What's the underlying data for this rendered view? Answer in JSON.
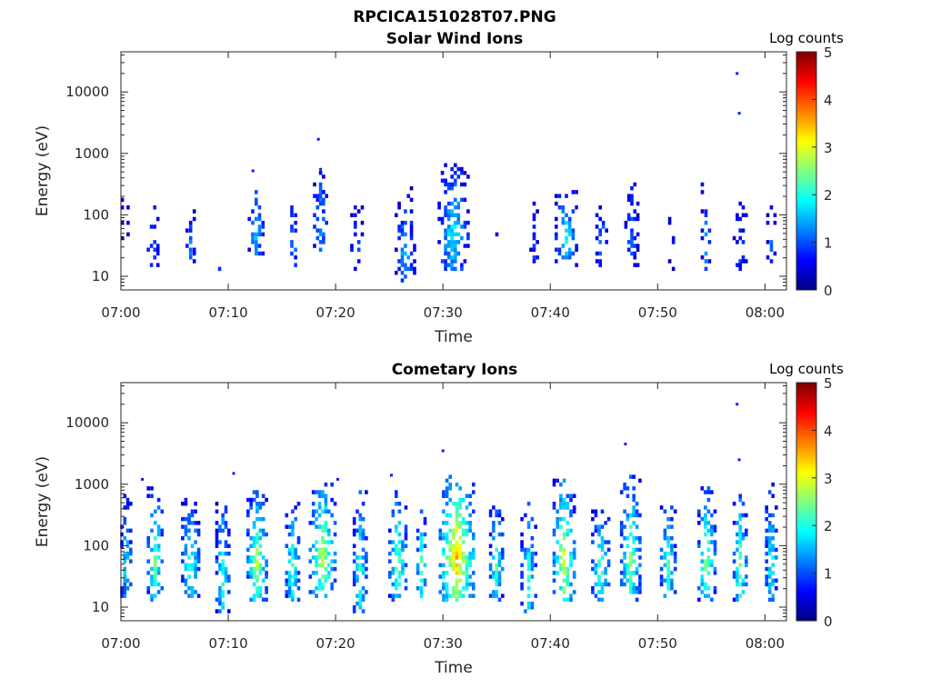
{
  "figure_title": "RPCICA151028T07.PNG",
  "colormap": [
    "#00007f",
    "#0000ff",
    "#007fff",
    "#00ffff",
    "#7fff7f",
    "#ffff00",
    "#ff7f00",
    "#ff0000",
    "#7f0000"
  ],
  "chart_data": [
    {
      "type": "heatmap",
      "title": "Solar Wind Ions",
      "xlabel": "Time",
      "ylabel": "Energy (eV)",
      "x_tick_labels": [
        "07:00",
        "07:10",
        "07:20",
        "07:30",
        "07:40",
        "07:50",
        "08:00"
      ],
      "x_ticks_min": [
        0,
        10,
        20,
        30,
        40,
        50,
        60
      ],
      "xlim_min": [
        0,
        62
      ],
      "y_scale": "log",
      "y_tick_labels": [
        "10",
        "100",
        "1000",
        "10000"
      ],
      "y_ticks": [
        10,
        100,
        1000,
        10000
      ],
      "ylim": [
        6,
        45000
      ],
      "colorbar": {
        "label": "Log counts",
        "ticks": [
          "0",
          "1",
          "2",
          "3",
          "4",
          "5"
        ],
        "range": [
          0,
          5
        ]
      },
      "bursts": [
        {
          "t": 0.4,
          "dur": 0.8,
          "emin": 40,
          "emax": 200,
          "peak": 0.9,
          "dens": 0.35
        },
        {
          "t": 3.0,
          "dur": 1.2,
          "emin": 12,
          "emax": 260,
          "peak": 1.2,
          "dens": 0.45
        },
        {
          "t": 6.5,
          "dur": 1.0,
          "emin": 12,
          "emax": 120,
          "peak": 1.3,
          "dens": 0.4
        },
        {
          "t": 9.2,
          "dur": 0.4,
          "emin": 12,
          "emax": 20,
          "peak": 0.8,
          "dens": 0.6
        },
        {
          "t": 12.6,
          "dur": 1.6,
          "emin": 18,
          "emax": 450,
          "peak": 1.6,
          "dens": 0.55
        },
        {
          "t": 16.1,
          "dur": 0.7,
          "emin": 12,
          "emax": 220,
          "peak": 1.5,
          "dens": 0.45
        },
        {
          "t": 18.6,
          "dur": 1.4,
          "emin": 20,
          "emax": 550,
          "peak": 1.5,
          "dens": 0.55
        },
        {
          "t": 22.0,
          "dur": 1.3,
          "emin": 12,
          "emax": 220,
          "peak": 1.1,
          "dens": 0.4
        },
        {
          "t": 26.5,
          "dur": 2.0,
          "emin": 6,
          "emax": 300,
          "peak": 1.5,
          "dens": 0.45
        },
        {
          "t": 31.0,
          "dur": 3.0,
          "emin": 12,
          "emax": 650,
          "peak": 1.9,
          "dens": 0.6
        },
        {
          "t": 35.2,
          "dur": 0.7,
          "emin": 40,
          "emax": 220,
          "peak": 0.9,
          "dens": 0.3
        },
        {
          "t": 38.5,
          "dur": 0.9,
          "emin": 12,
          "emax": 220,
          "peak": 0.9,
          "dens": 0.3
        },
        {
          "t": 41.5,
          "dur": 2.2,
          "emin": 15,
          "emax": 260,
          "peak": 1.9,
          "dens": 0.55
        },
        {
          "t": 44.8,
          "dur": 1.2,
          "emin": 15,
          "emax": 180,
          "peak": 1.3,
          "dens": 0.45
        },
        {
          "t": 47.6,
          "dur": 1.4,
          "emin": 15,
          "emax": 350,
          "peak": 1.1,
          "dens": 0.4
        },
        {
          "t": 51.3,
          "dur": 0.7,
          "emin": 12,
          "emax": 90,
          "peak": 0.8,
          "dens": 0.3
        },
        {
          "t": 54.5,
          "dur": 1.0,
          "emin": 12,
          "emax": 350,
          "peak": 1.3,
          "dens": 0.45
        },
        {
          "t": 57.7,
          "dur": 1.4,
          "emin": 12,
          "emax": 200,
          "peak": 1.0,
          "dens": 0.4
        },
        {
          "t": 60.6,
          "dur": 1.0,
          "emin": 15,
          "emax": 150,
          "peak": 1.1,
          "dens": 0.4
        }
      ],
      "outliers": [
        {
          "t": 57.4,
          "e": 20000
        },
        {
          "t": 57.6,
          "e": 4500
        },
        {
          "t": 18.4,
          "e": 1700
        },
        {
          "t": 12.3,
          "e": 520
        },
        {
          "t": 18.6,
          "e": 550
        }
      ]
    },
    {
      "type": "heatmap",
      "title": "Cometary Ions",
      "xlabel": "Time",
      "ylabel": "Energy (eV)",
      "x_tick_labels": [
        "07:00",
        "07:10",
        "07:20",
        "07:30",
        "07:40",
        "07:50",
        "08:00"
      ],
      "x_ticks_min": [
        0,
        10,
        20,
        30,
        40,
        50,
        60
      ],
      "xlim_min": [
        0,
        62
      ],
      "y_scale": "log",
      "y_tick_labels": [
        "10",
        "100",
        "1000",
        "10000"
      ],
      "y_ticks": [
        10,
        100,
        1000,
        10000
      ],
      "ylim": [
        6,
        45000
      ],
      "colorbar": {
        "label": "Log counts",
        "ticks": [
          "0",
          "1",
          "2",
          "3",
          "4",
          "5"
        ],
        "range": [
          0,
          5
        ]
      },
      "bursts": [
        {
          "t": 0.5,
          "dur": 1.1,
          "emin": 12,
          "emax": 700,
          "peak": 1.9,
          "dens": 0.6
        },
        {
          "t": 3.2,
          "dur": 1.6,
          "emin": 12,
          "emax": 900,
          "peak": 2.4,
          "dens": 0.65
        },
        {
          "t": 6.5,
          "dur": 1.8,
          "emin": 12,
          "emax": 600,
          "peak": 2.3,
          "dens": 0.65
        },
        {
          "t": 9.5,
          "dur": 1.4,
          "emin": 8,
          "emax": 600,
          "peak": 2.1,
          "dens": 0.6
        },
        {
          "t": 12.7,
          "dur": 2.0,
          "emin": 12,
          "emax": 800,
          "peak": 2.8,
          "dens": 0.7
        },
        {
          "t": 16.0,
          "dur": 1.4,
          "emin": 12,
          "emax": 500,
          "peak": 2.4,
          "dens": 0.6
        },
        {
          "t": 18.8,
          "dur": 2.6,
          "emin": 15,
          "emax": 1100,
          "peak": 2.9,
          "dens": 0.7
        },
        {
          "t": 22.3,
          "dur": 1.4,
          "emin": 8,
          "emax": 800,
          "peak": 2.3,
          "dens": 0.65
        },
        {
          "t": 25.8,
          "dur": 1.8,
          "emin": 12,
          "emax": 800,
          "peak": 2.5,
          "dens": 0.65
        },
        {
          "t": 28.0,
          "dur": 1.0,
          "emin": 15,
          "emax": 400,
          "peak": 2.5,
          "dens": 0.6
        },
        {
          "t": 31.3,
          "dur": 3.4,
          "emin": 12,
          "emax": 1500,
          "peak": 3.5,
          "dens": 0.75
        },
        {
          "t": 35.0,
          "dur": 1.4,
          "emin": 12,
          "emax": 500,
          "peak": 2.3,
          "dens": 0.6
        },
        {
          "t": 38.0,
          "dur": 1.6,
          "emin": 8,
          "emax": 600,
          "peak": 2.1,
          "dens": 0.55
        },
        {
          "t": 41.3,
          "dur": 2.2,
          "emin": 12,
          "emax": 1200,
          "peak": 3.0,
          "dens": 0.7
        },
        {
          "t": 44.7,
          "dur": 1.8,
          "emin": 12,
          "emax": 400,
          "peak": 2.4,
          "dens": 0.65
        },
        {
          "t": 47.5,
          "dur": 2.0,
          "emin": 12,
          "emax": 1500,
          "peak": 2.6,
          "dens": 0.65
        },
        {
          "t": 51.0,
          "dur": 1.6,
          "emin": 12,
          "emax": 500,
          "peak": 2.3,
          "dens": 0.6
        },
        {
          "t": 54.6,
          "dur": 1.8,
          "emin": 12,
          "emax": 900,
          "peak": 2.6,
          "dens": 0.65
        },
        {
          "t": 57.7,
          "dur": 1.4,
          "emin": 12,
          "emax": 700,
          "peak": 2.6,
          "dens": 0.65
        },
        {
          "t": 60.6,
          "dur": 1.2,
          "emin": 12,
          "emax": 1000,
          "peak": 2.2,
          "dens": 0.6
        }
      ],
      "outliers": [
        {
          "t": 57.4,
          "e": 20000
        },
        {
          "t": 57.6,
          "e": 2500
        },
        {
          "t": 47.0,
          "e": 4500
        },
        {
          "t": 30.0,
          "e": 3500
        },
        {
          "t": 10.5,
          "e": 1500
        },
        {
          "t": 20.2,
          "e": 1200
        },
        {
          "t": 25.2,
          "e": 1400
        },
        {
          "t": 2.0,
          "e": 1200
        }
      ]
    }
  ]
}
